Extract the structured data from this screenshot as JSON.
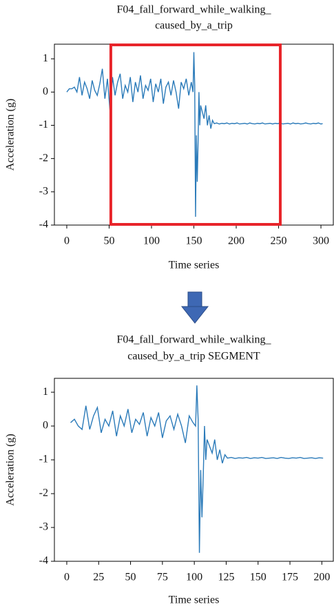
{
  "chart_data": [
    {
      "type": "line",
      "title": [
        "F04_fall_forward_while_walking_",
        "caused_by_a_trip"
      ],
      "x_label": "Time series",
      "y_label": "Acceleration (g)",
      "xlim": [
        -14.6,
        314.6
      ],
      "ylim": [
        -4,
        1.44
      ],
      "xticks": [
        0,
        50,
        100,
        150,
        200,
        250,
        300
      ],
      "yticks": [
        -4,
        -3,
        -2,
        -1,
        0,
        1
      ],
      "highlight": [
        52,
        252
      ],
      "highlight_color": "#e8242a",
      "series": [
        {
          "color": "#2a7ab9",
          "x": [
            0,
            3,
            6,
            9,
            12,
            15,
            18,
            21,
            24,
            27,
            30,
            33,
            36,
            39,
            42,
            45,
            48,
            51,
            54,
            57,
            60,
            63,
            66,
            69,
            72,
            75,
            78,
            81,
            84,
            87,
            90,
            93,
            96,
            99,
            102,
            105,
            108,
            111,
            114,
            117,
            120,
            123,
            126,
            129,
            132,
            135,
            138,
            141,
            144,
            147,
            149,
            150,
            151,
            152,
            153,
            154,
            155,
            156,
            157,
            158,
            160,
            162,
            164,
            166,
            168,
            170,
            172,
            174,
            177,
            180,
            183,
            186,
            189,
            192,
            195,
            198,
            201,
            204,
            207,
            210,
            213,
            216,
            219,
            222,
            225,
            228,
            231,
            234,
            237,
            240,
            243,
            246,
            249,
            252,
            255,
            258,
            261,
            264,
            267,
            270,
            273,
            276,
            279,
            282,
            285,
            288,
            291,
            294,
            297,
            300,
            302
          ],
          "values": [
            0.0,
            0.1,
            0.1,
            0.15,
            0.0,
            0.45,
            -0.1,
            0.3,
            0.1,
            -0.2,
            0.35,
            0.05,
            -0.1,
            0.25,
            0.7,
            -0.2,
            0.4,
            -0.55,
            0.45,
            -0.1,
            0.3,
            0.55,
            -0.2,
            0.2,
            0.0,
            0.45,
            -0.3,
            0.3,
            0.0,
            0.5,
            -0.2,
            0.2,
            0.05,
            0.4,
            -0.3,
            0.25,
            0.0,
            0.4,
            -0.35,
            0.15,
            0.3,
            -0.1,
            0.35,
            0.0,
            -0.5,
            0.3,
            0.1,
            0.4,
            -0.1,
            0.3,
            0.0,
            1.2,
            0.2,
            -3.75,
            -1.3,
            -2.7,
            -1.5,
            0.0,
            -1.0,
            -0.4,
            -0.6,
            -0.8,
            -0.4,
            -1.0,
            -0.7,
            -1.1,
            -0.85,
            -0.95,
            -0.93,
            -0.96,
            -0.94,
            -0.95,
            -0.93,
            -0.96,
            -0.94,
            -0.95,
            -0.93,
            -0.96,
            -0.95,
            -0.94,
            -0.96,
            -0.93,
            -0.95,
            -0.96,
            -0.94,
            -0.95,
            -0.93,
            -0.96,
            -0.95,
            -0.94,
            -0.96,
            -0.94,
            -0.95,
            -0.93,
            -0.96,
            -0.95,
            -0.94,
            -0.96,
            -0.93,
            -0.95,
            -0.94,
            -0.96,
            -0.95,
            -0.93,
            -0.95,
            -0.96,
            -0.94,
            -0.95,
            -0.93,
            -0.96,
            -0.95
          ]
        }
      ]
    },
    {
      "type": "line",
      "title": [
        "F04_fall_forward_while_walking_",
        "caused_by_a_trip SEGMENT"
      ],
      "x_label": "Time series",
      "y_label": "Acceleration (g)",
      "xlim": [
        -9.7,
        209
      ],
      "ylim": [
        -4,
        1.41
      ],
      "xticks": [
        0,
        25,
        50,
        75,
        100,
        125,
        150,
        175,
        200
      ],
      "yticks": [
        -4,
        -3,
        -2,
        -1,
        0,
        1
      ],
      "series": [
        {
          "color": "#2a7ab9",
          "x": [
            3,
            6,
            9,
            12,
            15,
            18,
            21,
            24,
            27,
            30,
            33,
            36,
            39,
            42,
            45,
            48,
            51,
            54,
            57,
            60,
            63,
            66,
            69,
            72,
            75,
            78,
            81,
            84,
            87,
            90,
            93,
            96,
            99,
            101,
            102,
            103,
            104,
            105,
            106,
            107,
            108,
            109,
            110,
            112,
            114,
            116,
            118,
            120,
            122,
            124,
            126,
            129,
            132,
            135,
            138,
            141,
            144,
            147,
            150,
            153,
            156,
            159,
            162,
            165,
            168,
            171,
            174,
            177,
            180,
            183,
            186,
            189,
            192,
            195,
            198,
            201
          ],
          "values": [
            0.1,
            0.2,
            0.0,
            -0.1,
            0.6,
            -0.1,
            0.3,
            0.55,
            -0.2,
            0.2,
            0.0,
            0.45,
            -0.3,
            0.3,
            0.0,
            0.5,
            -0.2,
            0.2,
            0.05,
            0.4,
            -0.3,
            0.25,
            0.0,
            0.4,
            -0.35,
            0.15,
            0.3,
            -0.1,
            0.35,
            0.0,
            -0.5,
            0.3,
            0.1,
            0.0,
            1.2,
            0.2,
            -3.75,
            -1.3,
            -2.7,
            -1.5,
            0.0,
            -1.0,
            -0.4,
            -0.6,
            -0.8,
            -0.4,
            -1.0,
            -0.7,
            -1.1,
            -0.85,
            -0.95,
            -0.93,
            -0.96,
            -0.94,
            -0.95,
            -0.93,
            -0.96,
            -0.94,
            -0.95,
            -0.93,
            -0.96,
            -0.95,
            -0.94,
            -0.96,
            -0.93,
            -0.95,
            -0.96,
            -0.94,
            -0.95,
            -0.93,
            -0.96,
            -0.95,
            -0.94,
            -0.96,
            -0.94,
            -0.95
          ]
        }
      ]
    }
  ]
}
